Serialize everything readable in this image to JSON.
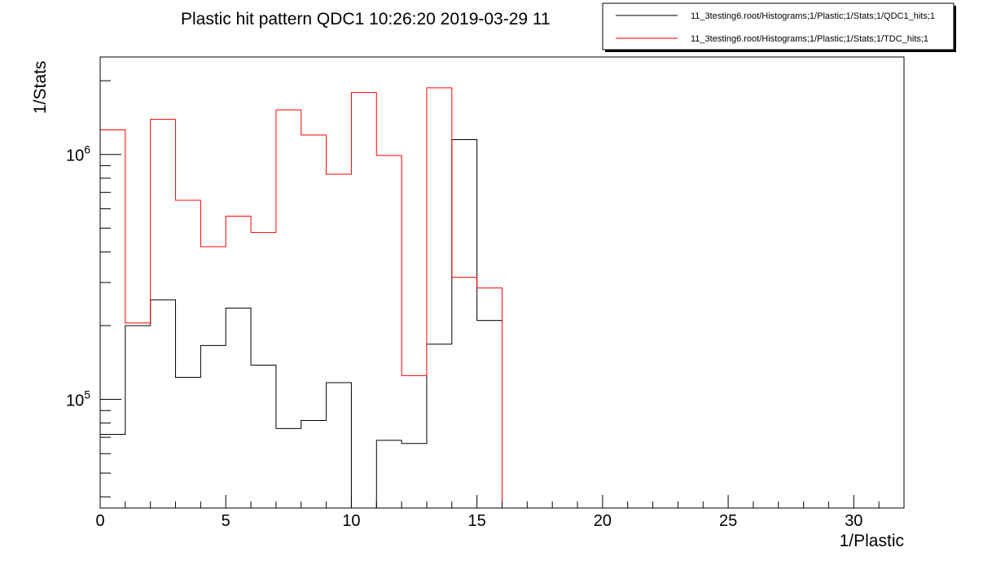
{
  "chart_data": {
    "type": "histogram-step",
    "title": "Plastic hit pattern QDC1  10:26:20  2019-03-29  11",
    "xlabel": "1/Plastic",
    "ylabel": "1/Stats",
    "x_scale": "linear",
    "y_scale": "log",
    "xlim": [
      0,
      32
    ],
    "ylim": [
      36000,
      2500000
    ],
    "x_ticks": [
      0,
      5,
      10,
      15,
      20,
      25,
      30
    ],
    "y_decade_labels": [
      {
        "value": 100000,
        "base": "10",
        "exp": "5"
      },
      {
        "value": 1000000,
        "base": "10",
        "exp": "6"
      }
    ],
    "grid": false,
    "legend_position": "top-right",
    "bin_edges": [
      0,
      1,
      2,
      3,
      4,
      5,
      6,
      7,
      8,
      9,
      10,
      11,
      12,
      13,
      14,
      15,
      16,
      17,
      18,
      19,
      20,
      21,
      22,
      23,
      24,
      25,
      26,
      27,
      28,
      29,
      30,
      31,
      32
    ],
    "series": [
      {
        "name": "11_3testing6.root/Histograms;1/Plastic;1/Stats;1/QDC1_hits;1",
        "color": "#000000",
        "values": [
          72000,
          200000,
          255000,
          123000,
          166000,
          236000,
          138000,
          76000,
          82000,
          117000,
          0,
          68000,
          66000,
          168000,
          1150000,
          210000,
          0,
          0,
          0,
          0,
          0,
          0,
          0,
          0,
          0,
          0,
          0,
          0,
          0,
          0,
          0,
          0
        ]
      },
      {
        "name": "11_3testing6.root/Histograms;1/Plastic;1/Stats;1/TDC_hits;1",
        "color": "#ff0000",
        "values": [
          1260000,
          205000,
          1390000,
          650000,
          420000,
          560000,
          480000,
          1520000,
          1200000,
          830000,
          1790000,
          990000,
          125000,
          1870000,
          315000,
          285000,
          0,
          0,
          0,
          0,
          0,
          0,
          0,
          0,
          0,
          0,
          0,
          0,
          0,
          0,
          0,
          0
        ]
      }
    ]
  }
}
